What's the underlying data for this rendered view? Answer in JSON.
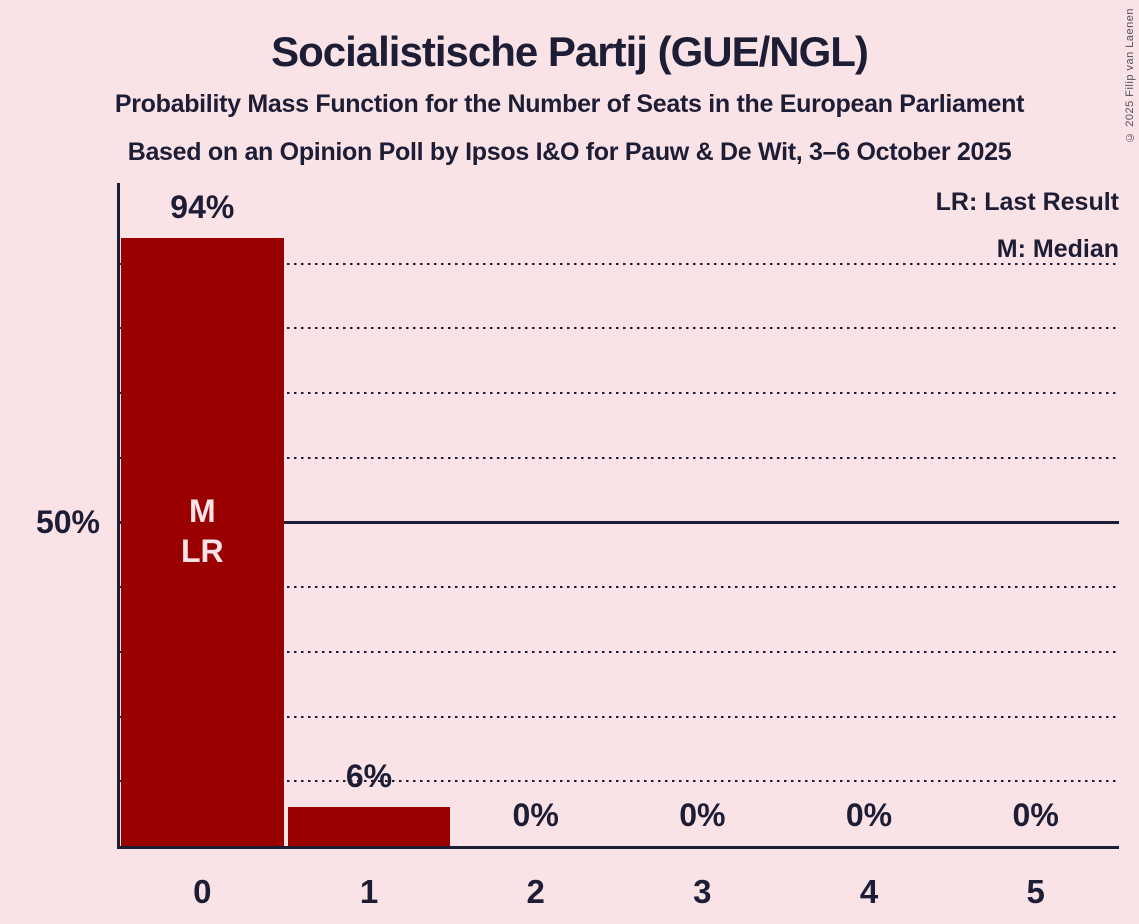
{
  "copyright": "© 2025 Filip van Laenen",
  "legend": {
    "lr": "LR: Last Result",
    "m": "M: Median"
  },
  "chart_data": {
    "type": "bar",
    "title": "Socialistische Partij (GUE/NGL)",
    "subtitle": "Probability Mass Function for the Number of Seats in the European Parliament",
    "source": "Based on an Opinion Poll by Ipsos I&O for Pauw & De Wit, 3–6 October 2025",
    "categories": [
      "0",
      "1",
      "2",
      "3",
      "4",
      "5"
    ],
    "values": [
      94,
      6,
      0,
      0,
      0,
      0
    ],
    "value_labels": [
      "94%",
      "6%",
      "0%",
      "0%",
      "0%",
      "0%"
    ],
    "y_axis_label": "50%",
    "ylim": [
      0,
      102
    ],
    "dotted_gridlines_pct": [
      10,
      20,
      30,
      40,
      60,
      70,
      80,
      90
    ],
    "solid_gridline_pct": 50,
    "median_bar_category": "0",
    "last_result_bar_category": "0",
    "bar_annotations": [
      "M",
      "LR"
    ],
    "legend_position": "top-right",
    "colors": {
      "background": "#fae3e7",
      "bar": "#9a0000",
      "text": "#1d1d35",
      "bar_annotation_text": "#fae3e7",
      "copyright_text": "#50505f"
    }
  }
}
